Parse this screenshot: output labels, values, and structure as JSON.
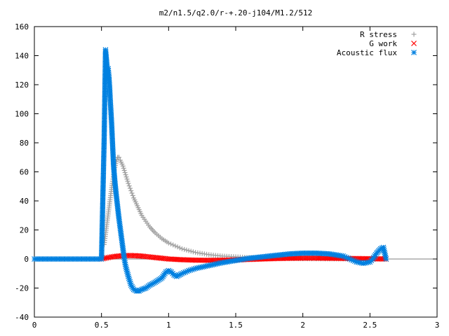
{
  "chart_data": {
    "type": "scatter",
    "title": "m2/n1.5/q2.0/r-+.20-j104/M1.2/512",
    "xlabel": "",
    "ylabel": "",
    "xlim": [
      0,
      3
    ],
    "ylim": [
      -40,
      160
    ],
    "xticks": [
      0,
      0.5,
      1,
      1.5,
      2,
      2.5,
      3
    ],
    "xtick_labels": [
      "0",
      "0.5",
      "1",
      "1.5",
      "2",
      "2.5",
      "3"
    ],
    "yticks": [
      -40,
      -20,
      0,
      20,
      40,
      60,
      80,
      100,
      120,
      140,
      160
    ],
    "ytick_labels": [
      "-40",
      "-20",
      "0",
      "20",
      "40",
      "60",
      "80",
      "100",
      "120",
      "140",
      "160"
    ],
    "grid": false,
    "legend_position": "top-right",
    "series": [
      {
        "name": "R stress",
        "marker": "plus",
        "color": "#a0a0a0",
        "x": [
          0.52,
          0.53,
          0.54,
          0.55,
          0.56,
          0.57,
          0.58,
          0.59,
          0.6,
          0.61,
          0.62,
          0.63,
          0.64,
          0.66,
          0.68,
          0.7,
          0.72,
          0.74,
          0.76,
          0.78,
          0.8,
          0.83,
          0.86,
          0.9,
          0.95,
          1.0,
          1.05,
          1.1,
          1.2,
          1.3,
          1.4,
          1.5,
          1.6,
          1.8,
          2.0,
          2.2,
          2.4,
          2.62
        ],
        "y": [
          10,
          17,
          24,
          31,
          38,
          45,
          52,
          58,
          63,
          67,
          70,
          70,
          68,
          64,
          58,
          52,
          47,
          42,
          38,
          34,
          30,
          26,
          22,
          18,
          14,
          11,
          9,
          7,
          4.5,
          3,
          2,
          1.5,
          1,
          0.5,
          0.2,
          0.1,
          0.05,
          0
        ]
      },
      {
        "name": "G work",
        "marker": "cross",
        "color": "#ff0000",
        "x": [
          0.5,
          0.55,
          0.6,
          0.65,
          0.7,
          0.75,
          0.8,
          0.85,
          0.9,
          0.95,
          1.0,
          1.1,
          1.2,
          1.3,
          1.4,
          1.5,
          1.6,
          1.7,
          1.8,
          1.9,
          2.0,
          2.1,
          2.2,
          2.3,
          2.4,
          2.5,
          2.62
        ],
        "y": [
          0,
          1,
          1.8,
          2.2,
          2.4,
          2.3,
          2.0,
          1.5,
          1.0,
          0.5,
          0,
          -0.5,
          -0.8,
          -0.9,
          -0.8,
          -0.6,
          -0.3,
          0,
          0.3,
          0.5,
          0.6,
          0.6,
          0.5,
          0.4,
          0.3,
          0.2,
          0
        ]
      },
      {
        "name": "Acoustic flux",
        "marker": "star",
        "color": "#0080e0",
        "x": [
          0.0,
          0.05,
          0.1,
          0.15,
          0.2,
          0.25,
          0.3,
          0.35,
          0.4,
          0.45,
          0.5,
          0.52,
          0.53,
          0.54,
          0.545,
          0.55,
          0.555,
          0.56,
          0.565,
          0.57,
          0.575,
          0.58,
          0.585,
          0.59,
          0.6,
          0.61,
          0.62,
          0.63,
          0.64,
          0.65,
          0.66,
          0.67,
          0.68,
          0.7,
          0.72,
          0.74,
          0.76,
          0.78,
          0.8,
          0.83,
          0.86,
          0.9,
          0.95,
          0.98,
          1.0,
          1.02,
          1.04,
          1.06,
          1.08,
          1.1,
          1.15,
          1.2,
          1.3,
          1.4,
          1.5,
          1.6,
          1.7,
          1.8,
          1.9,
          2.0,
          2.1,
          2.2,
          2.3,
          2.35,
          2.4,
          2.45,
          2.5,
          2.52,
          2.55,
          2.58,
          2.6,
          2.62
        ],
        "y": [
          0,
          0,
          0,
          0,
          0,
          0,
          0,
          0,
          0,
          0,
          0,
          83,
          144,
          134,
          126,
          131,
          126,
          119,
          110,
          102,
          94,
          84,
          74,
          64,
          53,
          44,
          36,
          28,
          21,
          14,
          7,
          0,
          -5,
          -12,
          -18,
          -21,
          -22,
          -22,
          -21,
          -20,
          -18,
          -16,
          -13,
          -9,
          -8,
          -9,
          -11,
          -12,
          -11,
          -10,
          -8,
          -6.5,
          -4.5,
          -2.5,
          -1,
          0.5,
          1.5,
          2.5,
          3.5,
          4,
          4,
          3.5,
          2,
          0,
          -2,
          -3,
          -2,
          0,
          4,
          7,
          8,
          0
        ]
      }
    ]
  }
}
